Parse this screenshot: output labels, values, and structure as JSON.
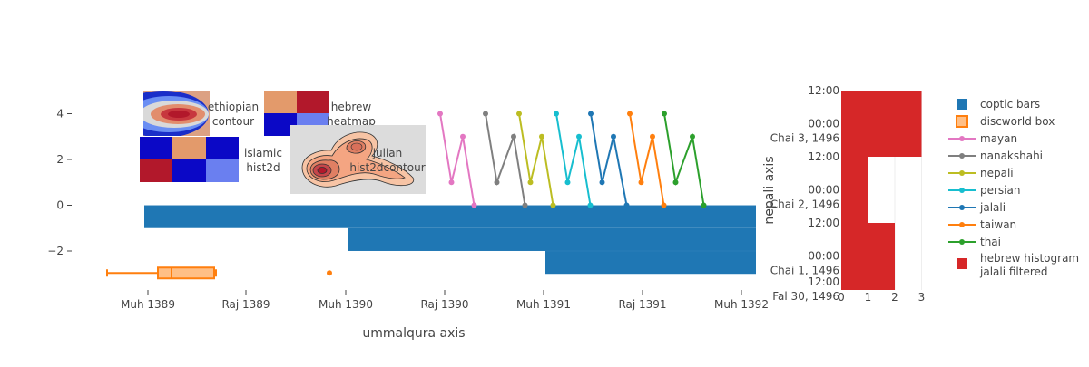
{
  "chart_data": [
    {
      "type": "bar",
      "xlabel": "ummalqura axis",
      "x_ticks": [
        "Muh 1389",
        "Raj 1389",
        "Muh 1390",
        "Raj 1390",
        "Muh 1391",
        "Raj 1391",
        "Muh 1392"
      ],
      "y_ticks": [
        "4",
        "2",
        "0",
        "−2"
      ],
      "ylim": [
        -3.8,
        5.2
      ],
      "series": [
        {
          "name": "coptic bars",
          "type": "bar",
          "orientation": "h",
          "color": "#1f77b4",
          "bars": [
            {
              "start": "Muh 1389",
              "end": "Muh 1392",
              "value": -0.5
            },
            {
              "start": "Muh 1390",
              "end": "Muh 1392",
              "value": -1.5
            },
            {
              "start": "Muh 1391",
              "end": "Muh 1392",
              "value": -2.5
            }
          ]
        },
        {
          "name": "discworld box",
          "type": "box",
          "orientation": "h",
          "color": "#ff7f0e",
          "y": -3,
          "min": "Dhu 1388",
          "q1": "Muh 1389",
          "median": "Saf 1389",
          "q3": "Jum 1389",
          "max": "Jum 1389",
          "outlier": "Dhu 1389"
        },
        {
          "name": "mayan",
          "type": "line",
          "color": "#e377c2",
          "y": [
            4,
            1,
            3,
            0
          ]
        },
        {
          "name": "nanakshahi",
          "type": "line",
          "color": "#7f7f7f",
          "y": [
            4,
            1,
            3,
            0
          ]
        },
        {
          "name": "nepali",
          "type": "line",
          "color": "#bcbd22",
          "y": [
            4,
            1,
            3,
            0
          ]
        },
        {
          "name": "persian",
          "type": "line",
          "color": "#17becf",
          "y": [
            4,
            1,
            3,
            0
          ]
        },
        {
          "name": "jalali",
          "type": "line",
          "color": "#1f77b4",
          "y": [
            4,
            1,
            3,
            0
          ]
        },
        {
          "name": "taiwan",
          "type": "line",
          "color": "#ff7f0e",
          "y": [
            4,
            1,
            3,
            0
          ]
        },
        {
          "name": "thai",
          "type": "line",
          "color": "#2ca02c",
          "y": [
            4,
            1,
            3,
            0
          ]
        }
      ],
      "insets": [
        {
          "name": "ethiopian contour",
          "type": "contour"
        },
        {
          "name": "hebrew heatmap",
          "type": "heatmap"
        },
        {
          "name": "islamic hist2d",
          "type": "histogram2d"
        },
        {
          "name": "julian hist2dcontour",
          "type": "histogram2dcontour"
        }
      ]
    },
    {
      "type": "bar",
      "orientation": "h",
      "ylabel": "nepali axis",
      "x_ticks": [
        "0",
        "1",
        "2",
        "3"
      ],
      "xlim": [
        0,
        3.05
      ],
      "y_ticks": [
        {
          "top": "12:00",
          "bottom": ""
        },
        {
          "top": "00:00",
          "bottom": "Chai 3, 1496"
        },
        {
          "top": "12:00",
          "bottom": ""
        },
        {
          "top": "00:00",
          "bottom": "Chai 2, 1496"
        },
        {
          "top": "12:00",
          "bottom": ""
        },
        {
          "top": "00:00",
          "bottom": "Chai 1, 1496"
        },
        {
          "top": "12:00",
          "bottom": ""
        },
        {
          "top": "",
          "bottom": "Fal 30, 1496"
        }
      ],
      "series": [
        {
          "name": "hebrew histogram jalali filtered",
          "color": "#d62728",
          "bins": [
            {
              "from": "Fal 30, 1496 12:00",
              "to": "Chai 1, 1496 12:00",
              "count": 2
            },
            {
              "from": "Chai 1, 1496 12:00",
              "to": "Chai 2, 1496 12:00",
              "count": 1
            },
            {
              "from": "Chai 2, 1496 12:00",
              "to": "Chai 3, 1496 12:00",
              "count": 3
            }
          ]
        }
      ]
    }
  ],
  "legend": [
    {
      "label": "coptic bars",
      "color": "#1f77b4",
      "symbol": "square"
    },
    {
      "label": "discworld box",
      "color": "#ff7f0e",
      "symbol": "box"
    },
    {
      "label": "mayan",
      "color": "#e377c2",
      "symbol": "line"
    },
    {
      "label": "nanakshahi",
      "color": "#7f7f7f",
      "symbol": "line"
    },
    {
      "label": "nepali",
      "color": "#bcbd22",
      "symbol": "line"
    },
    {
      "label": "persian",
      "color": "#17becf",
      "symbol": "line"
    },
    {
      "label": "jalali",
      "color": "#1f77b4",
      "symbol": "line"
    },
    {
      "label": "taiwan",
      "color": "#ff7f0e",
      "symbol": "line"
    },
    {
      "label": "thai",
      "color": "#2ca02c",
      "symbol": "line"
    },
    {
      "label": "hebrew histogram",
      "label2": "jalali filtered",
      "color": "#d62728",
      "symbol": "square"
    }
  ]
}
